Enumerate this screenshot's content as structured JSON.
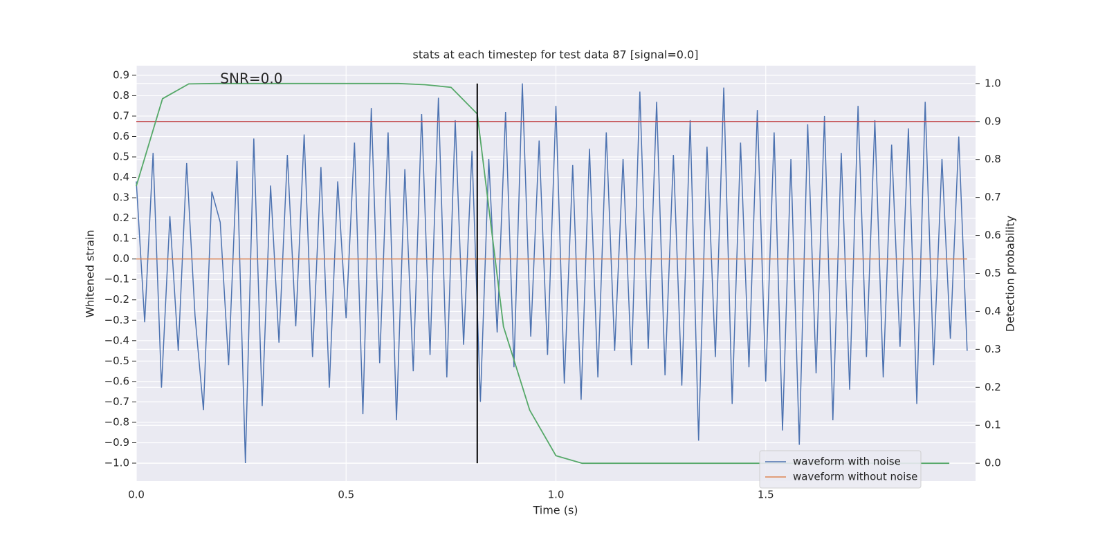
{
  "chart_data": {
    "type": "line",
    "title": "stats at each timestep for test data 87 [signal=0.0]",
    "xlabel": "Time (s)",
    "ylabel": "Whitened strain",
    "y2label": "Detection probability",
    "xlim": [
      0,
      2.0
    ],
    "ylim": [
      -1.088,
      0.947
    ],
    "y2lim": [
      -0.047,
      1.047
    ],
    "xticks": [
      {
        "value": 0,
        "label": "0.0"
      },
      0.5,
      {
        "value": 1,
        "label": "1.0"
      },
      1.5
    ],
    "yticks": [
      {
        "value": -1,
        "label": "−1.0"
      },
      {
        "value": -0.9,
        "label": "−0.9"
      },
      {
        "value": -0.8,
        "label": "−0.8"
      },
      {
        "value": -0.7,
        "label": "−0.7"
      },
      {
        "value": -0.6,
        "label": "−0.6"
      },
      {
        "value": -0.5,
        "label": "−0.5"
      },
      {
        "value": -0.4,
        "label": "−0.4"
      },
      {
        "value": -0.3,
        "label": "−0.3"
      },
      {
        "value": -0.2,
        "label": "−0.2"
      },
      {
        "value": -0.1,
        "label": "−0.1"
      },
      {
        "value": 0,
        "label": "0.0"
      },
      0.1,
      0.2,
      0.3,
      0.4,
      0.5,
      0.6,
      0.7,
      0.8,
      0.9
    ],
    "y2ticks": [
      {
        "value": 0,
        "label": "0.0"
      },
      0.1,
      0.2,
      0.3,
      0.4,
      0.5,
      0.6,
      0.7,
      0.8,
      0.9,
      {
        "value": 1,
        "label": "1.0"
      }
    ],
    "grid": true,
    "legend": "lower right",
    "annotations": [
      {
        "text": "SNR=0.0",
        "x": 0.2,
        "y": 0.88
      }
    ],
    "hlines": [
      {
        "y": 0.9,
        "axis": "y2",
        "color": "#c44e52"
      }
    ],
    "vlines": [
      {
        "x": 0.8125,
        "ymin": 0,
        "ymax": 1,
        "axis": "y2",
        "color": "#000000"
      }
    ],
    "series": [
      {
        "name": "waveform with noise",
        "color": "#4c72b0",
        "x": [
          0,
          0.02,
          0.04,
          0.06,
          0.08,
          0.1,
          0.12,
          0.14,
          0.16,
          0.18,
          0.2,
          0.22,
          0.24,
          0.26,
          0.28,
          0.3,
          0.32,
          0.34,
          0.36,
          0.38,
          0.4,
          0.42,
          0.44,
          0.46,
          0.48,
          0.5,
          0.52,
          0.54,
          0.56,
          0.58,
          0.6,
          0.62,
          0.64,
          0.66,
          0.68,
          0.7,
          0.72,
          0.74,
          0.76,
          0.78,
          0.8,
          0.82,
          0.84,
          0.86,
          0.88,
          0.9,
          0.92,
          0.94,
          0.96,
          0.98,
          1.0,
          1.02,
          1.04,
          1.06,
          1.08,
          1.1,
          1.12,
          1.14,
          1.16,
          1.18,
          1.2,
          1.22,
          1.24,
          1.26,
          1.28,
          1.3,
          1.32,
          1.34,
          1.36,
          1.38,
          1.4,
          1.42,
          1.44,
          1.46,
          1.48,
          1.5,
          1.52,
          1.54,
          1.56,
          1.58,
          1.6,
          1.62,
          1.64,
          1.66,
          1.68,
          1.7,
          1.72,
          1.74,
          1.76,
          1.78,
          1.8,
          1.82,
          1.84,
          1.86,
          1.88,
          1.9,
          1.92,
          1.94,
          1.96,
          1.98
        ],
        "values": [
          0.38,
          -0.31,
          0.52,
          -0.63,
          0.21,
          -0.45,
          0.47,
          -0.28,
          -0.74,
          0.33,
          0.18,
          -0.52,
          0.48,
          -1.0,
          0.59,
          -0.72,
          0.36,
          -0.41,
          0.51,
          -0.33,
          0.61,
          -0.48,
          0.45,
          -0.63,
          0.38,
          -0.29,
          0.57,
          -0.76,
          0.74,
          -0.51,
          0.62,
          -0.79,
          0.44,
          -0.55,
          0.71,
          -0.47,
          0.79,
          -0.58,
          0.68,
          -0.42,
          0.53,
          -0.7,
          0.49,
          -0.36,
          0.72,
          -0.53,
          0.86,
          -0.38,
          0.58,
          -0.47,
          0.75,
          -0.61,
          0.46,
          -0.69,
          0.54,
          -0.58,
          0.62,
          -0.45,
          0.49,
          -0.52,
          0.82,
          -0.44,
          0.77,
          -0.57,
          0.51,
          -0.62,
          0.68,
          -0.89,
          0.55,
          -0.48,
          0.84,
          -0.71,
          0.57,
          -0.53,
          0.73,
          -0.6,
          0.62,
          -0.84,
          0.49,
          -0.91,
          0.66,
          -0.56,
          0.7,
          -0.79,
          0.52,
          -0.64,
          0.75,
          -0.48,
          0.68,
          -0.58,
          0.56,
          -0.43,
          0.64,
          -0.71,
          0.77,
          -0.52,
          0.49,
          -0.39,
          0.6,
          -0.45
        ]
      },
      {
        "name": "waveform without noise",
        "color": "#dd8452",
        "x": [
          0,
          1.98
        ],
        "values": [
          0,
          0
        ]
      },
      {
        "color": "#55a868",
        "axis": "y2",
        "x": [
          0,
          0.0625,
          0.125,
          0.1875,
          0.25,
          0.3125,
          0.375,
          0.4375,
          0.5,
          0.5625,
          0.625,
          0.6875,
          0.75,
          0.8125,
          0.875,
          0.9375,
          1.0,
          1.0625,
          1.125,
          1.1875,
          1.25,
          1.3125,
          1.375,
          1.4375,
          1.5,
          1.5625,
          1.625,
          1.6875,
          1.75,
          1.8125,
          1.875,
          1.9375
        ],
        "values": [
          0.73,
          0.96,
          0.999,
          1.0,
          1.0,
          1.0,
          1.0,
          1.0,
          1.0,
          1.0,
          1.0,
          0.997,
          0.99,
          0.92,
          0.36,
          0.14,
          0.02,
          0.0,
          0.0,
          0.0,
          0.0,
          0.0,
          0.0,
          0.0,
          0.0,
          0.0,
          0.0,
          0.0,
          0.0,
          0.0,
          0.0,
          0.0
        ]
      }
    ]
  }
}
